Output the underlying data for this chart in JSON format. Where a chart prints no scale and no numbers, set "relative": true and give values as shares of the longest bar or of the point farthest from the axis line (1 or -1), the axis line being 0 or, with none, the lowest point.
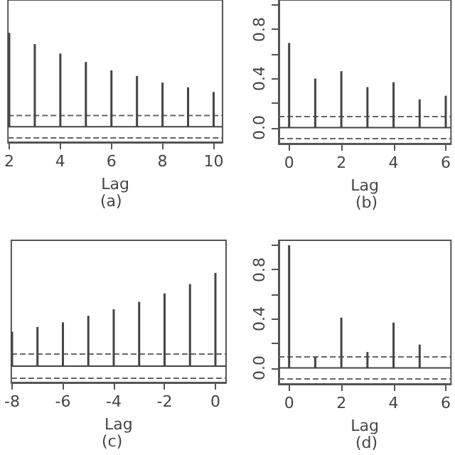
{
  "chart_data": [
    {
      "type": "bar",
      "xlabel": "Lag",
      "annotations": [
        "(a)"
      ],
      "relative": true,
      "tick_labels": "x",
      "x": [
        2,
        3,
        4,
        5,
        6,
        7,
        8,
        9,
        10
      ],
      "values": [
        1,
        0.88,
        0.78,
        0.69,
        0.6,
        0.54,
        0.47,
        0.42,
        0.37
      ],
      "color": "#444444",
      "xlim": [
        1.95,
        10.35
      ],
      "xticks": [
        2,
        4,
        6,
        8,
        10
      ],
      "grid": false,
      "ref_lines": [
        {
          "axis": "y",
          "value": 0,
          "line_style": "solid",
          "color": "#444444"
        },
        {
          "axis": "y",
          "value": 0.12,
          "line_style": "dashed",
          "color": "#666666"
        },
        {
          "axis": "y",
          "value": -0.12,
          "line_style": "dashed",
          "color": "#666666"
        }
      ]
    },
    {
      "type": "bar",
      "xlabel": "Lag",
      "annotations": [
        "(b)"
      ],
      "x": [
        0,
        1,
        2,
        3,
        4,
        5,
        6
      ],
      "values": [
        0.69,
        0.4,
        0.46,
        0.33,
        0.37,
        0.23,
        0.26
      ],
      "color": "#444444",
      "xlim": [
        -0.4,
        6.2
      ],
      "xticks": [
        0,
        2,
        4,
        6
      ],
      "ylim": [
        -0.13,
        1.04
      ],
      "yticks": [
        {
          "value": 0,
          "label": "0.0"
        },
        {
          "value": 0.2,
          "label": null
        },
        {
          "value": 0.4,
          "label": "0.4"
        },
        {
          "value": 0.6,
          "label": null
        },
        {
          "value": 0.8,
          "label": "0.8"
        },
        {
          "value": 1,
          "label": null
        }
      ],
      "grid": false,
      "ref_lines": [
        {
          "axis": "y",
          "value": 0,
          "line_style": "solid",
          "color": "#444444"
        },
        {
          "axis": "y",
          "value": 0.09,
          "line_style": "dashed",
          "color": "#666666"
        },
        {
          "axis": "y",
          "value": -0.09,
          "line_style": "dashed",
          "color": "#666666"
        }
      ]
    },
    {
      "type": "bar",
      "xlabel": "Lag",
      "annotations": [
        "(c)"
      ],
      "relative": true,
      "tick_labels": "x",
      "x": [
        -8,
        -7,
        -6,
        -5,
        -4,
        -3,
        -2,
        -1,
        0
      ],
      "values": [
        0.37,
        0.42,
        0.47,
        0.54,
        0.61,
        0.69,
        0.78,
        0.88,
        1
      ],
      "color": "#444444",
      "xlim": [
        -8.03,
        0.42
      ],
      "xticks": [
        -8,
        -6,
        -4,
        -2,
        0
      ],
      "grid": false,
      "ref_lines": [
        {
          "axis": "y",
          "value": 0,
          "line_style": "solid",
          "color": "#444444"
        },
        {
          "axis": "y",
          "value": 0.13,
          "line_style": "dashed",
          "color": "#666666"
        },
        {
          "axis": "y",
          "value": -0.13,
          "line_style": "dashed",
          "color": "#666666"
        }
      ]
    },
    {
      "type": "bar",
      "xlabel": "Lag",
      "annotations": [
        "(d)"
      ],
      "x": [
        0,
        1,
        2,
        3,
        4,
        5
      ],
      "values": [
        1,
        0.09,
        0.41,
        0.13,
        0.37,
        0.19
      ],
      "color": "#444444",
      "xlim": [
        -0.4,
        6.2
      ],
      "xticks": [
        0,
        2,
        4,
        6
      ],
      "ylim": [
        -0.13,
        1.04
      ],
      "yticks": [
        {
          "value": 0,
          "label": "0.0"
        },
        {
          "value": 0.2,
          "label": null
        },
        {
          "value": 0.4,
          "label": "0.4"
        },
        {
          "value": 0.6,
          "label": null
        },
        {
          "value": 0.8,
          "label": "0.8"
        },
        {
          "value": 1,
          "label": null
        }
      ],
      "grid": false,
      "ref_lines": [
        {
          "axis": "y",
          "value": 0,
          "line_style": "solid",
          "color": "#444444"
        },
        {
          "axis": "y",
          "value": 0.09,
          "line_style": "dashed",
          "color": "#666666"
        },
        {
          "axis": "y",
          "value": -0.09,
          "line_style": "dashed",
          "color": "#666666"
        }
      ]
    }
  ]
}
